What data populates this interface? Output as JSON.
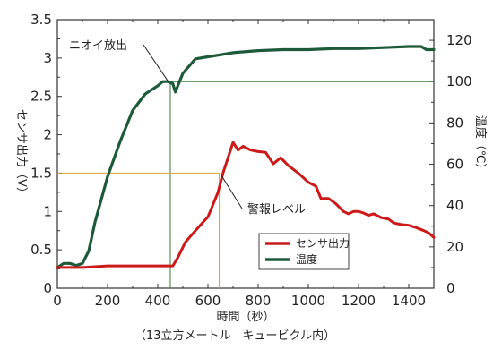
{
  "chart_data": {
    "type": "line",
    "xlabel": "時間（秒）",
    "xlabel_sub": "（13立方メートル　キュービクル内）",
    "ylabel_left": "センサ出力（V）",
    "ylabel_right": "温度（℃）",
    "xlim": [
      0,
      1500
    ],
    "ylim_left": [
      0,
      3.5
    ],
    "ylim_right": [
      0,
      130
    ],
    "x_ticks": [
      "0",
      "200",
      "400",
      "600",
      "800",
      "1000",
      "1200",
      "1400"
    ],
    "y_left_ticks": [
      "0",
      "0.5",
      "1",
      "1.5",
      "2",
      "2.5",
      "3",
      "3.5"
    ],
    "y_right_ticks": [
      "0",
      "20",
      "40",
      "60",
      "80",
      "100",
      "120"
    ],
    "grid": false,
    "legend_position": "center-right",
    "colors": {
      "sensor": "#cc1a1a",
      "temperature": "#1d5a3a",
      "guide_temp": "#3a7a3a",
      "guide_alarm": "#d4a030"
    },
    "series": [
      {
        "name": "センサ出力",
        "axis": "left",
        "x": [
          0,
          50,
          100,
          150,
          200,
          300,
          400,
          460,
          480,
          510,
          550,
          600,
          640,
          660,
          680,
          700,
          720,
          740,
          770,
          800,
          830,
          860,
          890,
          920,
          960,
          1000,
          1030,
          1050,
          1080,
          1110,
          1140,
          1160,
          1180,
          1200,
          1220,
          1240,
          1260,
          1290,
          1320,
          1340,
          1370,
          1400,
          1430,
          1460,
          1480,
          1500
        ],
        "values": [
          0.27,
          0.27,
          0.27,
          0.28,
          0.29,
          0.29,
          0.29,
          0.29,
          0.4,
          0.6,
          0.75,
          0.93,
          1.25,
          1.5,
          1.7,
          1.9,
          1.8,
          1.85,
          1.8,
          1.78,
          1.77,
          1.62,
          1.7,
          1.6,
          1.5,
          1.38,
          1.33,
          1.17,
          1.17,
          1.1,
          1.0,
          0.97,
          1.0,
          1.0,
          0.98,
          0.95,
          0.97,
          0.92,
          0.9,
          0.85,
          0.83,
          0.82,
          0.79,
          0.75,
          0.72,
          0.66
        ]
      },
      {
        "name": "温度",
        "axis": "right",
        "x": [
          0,
          25,
          50,
          75,
          100,
          125,
          150,
          200,
          250,
          300,
          350,
          400,
          420,
          440,
          460,
          470,
          480,
          500,
          550,
          600,
          700,
          800,
          900,
          1000,
          1100,
          1200,
          1300,
          1400,
          1450,
          1470,
          1500
        ],
        "values": [
          10,
          12,
          12,
          11,
          12,
          18,
          32,
          54,
          71,
          86,
          94,
          98,
          100,
          100,
          99,
          95,
          98,
          104,
          111,
          112,
          114,
          115,
          115.5,
          115.5,
          116,
          116,
          116.5,
          117,
          117,
          115.5,
          115.5
        ]
      }
    ],
    "annotations": [
      {
        "label": "ニオイ放出",
        "x": 450
      },
      {
        "label": "警報レベル",
        "x": 645,
        "y": 1.5
      }
    ],
    "reference_temperature": 100
  }
}
